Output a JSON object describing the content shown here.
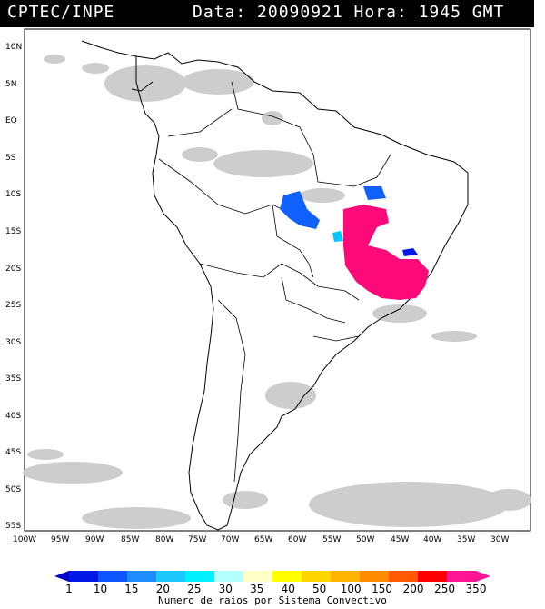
{
  "header": {
    "source": "CPTEC/INPE",
    "datetime": "Data: 20090921 Hora: 1945 GMT"
  },
  "map": {
    "lat_labels": [
      "10N",
      "5N",
      "EQ",
      "5S",
      "10S",
      "15S",
      "20S",
      "25S",
      "30S",
      "35S",
      "40S",
      "45S",
      "50S",
      "55S"
    ],
    "lon_labels": [
      "100W",
      "95W",
      "90W",
      "85W",
      "80W",
      "75W",
      "70W",
      "65W",
      "60W",
      "55W",
      "50W",
      "45W",
      "40W",
      "35W",
      "30W"
    ],
    "colors": {
      "cloud": "#c8c8c8",
      "coast": "#000000",
      "class_1": "#0000ff",
      "class_15": "#1e90ff",
      "class_25": "#00e5ff",
      "class_350": "#ff0a78"
    }
  },
  "colorbar": {
    "labels": [
      "1",
      "10",
      "15",
      "20",
      "25",
      "30",
      "35",
      "40",
      "50",
      "100",
      "150",
      "200",
      "250",
      "350"
    ],
    "colors": [
      "#0018e6",
      "#0f55ff",
      "#1e8cff",
      "#1ec8ff",
      "#00f0ff",
      "#b4ffff",
      "#ffffc8",
      "#ffff00",
      "#ffd700",
      "#ffb400",
      "#ff8c00",
      "#ff5a00",
      "#ff0000",
      "#ff1493"
    ],
    "caption": "Numero de raios por Sistema Convectivo"
  }
}
